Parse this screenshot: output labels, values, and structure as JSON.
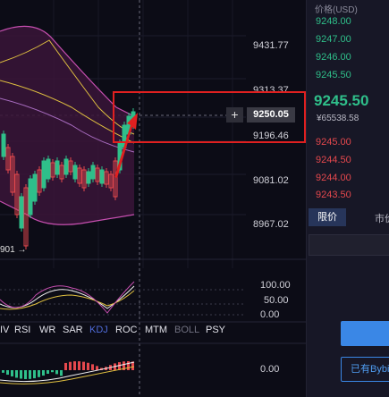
{
  "chart": {
    "price_axis": [
      "9431.77",
      "9313.37",
      "9196.46",
      "9081.02",
      "8967.02"
    ],
    "current_price": "9250.05",
    "low_marker": "901 →",
    "indicator_axis_top": [
      "100.00",
      "50.00",
      "0.00"
    ],
    "indicator_axis_bottom": "0.00",
    "indicator_tabs": [
      {
        "label": "IV",
        "active": false
      },
      {
        "label": "RSI",
        "active": false
      },
      {
        "label": "WR",
        "active": false
      },
      {
        "label": "SAR",
        "active": false
      },
      {
        "label": "KDJ",
        "active": true
      },
      {
        "label": "ROC",
        "active": false
      },
      {
        "label": "MTM",
        "active": false
      },
      {
        "label": "BOLL",
        "active": false,
        "dim": true
      },
      {
        "label": "PSY",
        "active": false
      }
    ],
    "plus_label": "+",
    "colors": {
      "up": "#2fbf8a",
      "down": "#e5484d",
      "band": "#c74fb0",
      "ma": "#e0c040",
      "highlight": "#e02020"
    }
  },
  "orderbook": {
    "header": "价格(USD)",
    "asks": [
      "9248.00",
      "9247.00",
      "9246.00",
      "9245.50"
    ],
    "last_price": "9245.50",
    "last_price_sub": "¥65538.58",
    "bids": [
      "9245.00",
      "9244.50",
      "9244.00",
      "9243.50"
    ],
    "tab_limit": "限价",
    "tab_market": "市价",
    "has_button": "已有Bybit"
  }
}
